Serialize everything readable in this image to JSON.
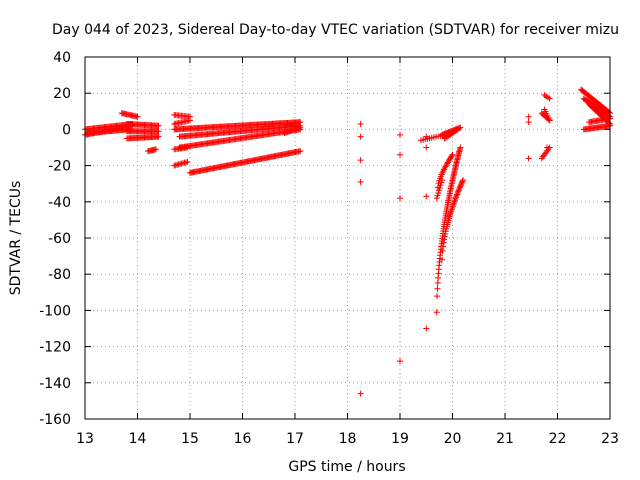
{
  "chart_data": {
    "type": "scatter",
    "title": "Day 044 of 2023, Sidereal Day-to-day VTEC variation (SDTVAR) for receiver mizu",
    "xlabel": "GPS time / hours",
    "ylabel": "SDTVAR / TECUs",
    "xlim": [
      13,
      23
    ],
    "ylim": [
      -160,
      40
    ],
    "xticks": [
      13,
      14,
      15,
      16,
      17,
      18,
      19,
      20,
      21,
      22,
      23
    ],
    "yticks": [
      -160,
      -140,
      -120,
      -100,
      -80,
      -60,
      -40,
      -20,
      0,
      20,
      40
    ],
    "grid": true,
    "marker": "+",
    "color": "#ff0000",
    "segments": [
      {
        "x0": 13.0,
        "y0": -3,
        "x1": 13.9,
        "y1": 2,
        "n": 40
      },
      {
        "x0": 13.0,
        "y0": 0,
        "x1": 13.9,
        "y1": 3,
        "n": 40
      },
      {
        "x0": 13.05,
        "y0": -2,
        "x1": 13.85,
        "y1": 0,
        "n": 36
      },
      {
        "x0": 13.7,
        "y0": 9,
        "x1": 14.0,
        "y1": 7,
        "n": 14
      },
      {
        "x0": 13.8,
        "y0": -5,
        "x1": 14.4,
        "y1": -4,
        "n": 28
      },
      {
        "x0": 13.8,
        "y0": 3,
        "x1": 14.4,
        "y1": 2,
        "n": 28
      },
      {
        "x0": 13.8,
        "y0": -1,
        "x1": 14.4,
        "y1": -1,
        "n": 28
      },
      {
        "x0": 14.2,
        "y0": -12,
        "x1": 14.35,
        "y1": -11,
        "n": 8
      },
      {
        "x0": 14.7,
        "y0": 8,
        "x1": 15.0,
        "y1": 7,
        "n": 12
      },
      {
        "x0": 14.7,
        "y0": 3,
        "x1": 15.0,
        "y1": 5,
        "n": 12
      },
      {
        "x0": 14.7,
        "y0": -20,
        "x1": 14.95,
        "y1": -18,
        "n": 10
      },
      {
        "x0": 14.7,
        "y0": -11,
        "x1": 14.95,
        "y1": -10,
        "n": 10
      },
      {
        "x0": 14.7,
        "y0": 0,
        "x1": 17.1,
        "y1": 4,
        "n": 110
      },
      {
        "x0": 14.8,
        "y0": -4,
        "x1": 17.1,
        "y1": 2,
        "n": 100
      },
      {
        "x0": 14.8,
        "y0": -10,
        "x1": 17.1,
        "y1": 0,
        "n": 100
      },
      {
        "x0": 15.0,
        "y0": -24,
        "x1": 17.1,
        "y1": -12,
        "n": 95
      },
      {
        "x0": 16.8,
        "y0": -2,
        "x1": 17.1,
        "y1": 1,
        "n": 14
      },
      {
        "x0": 19.4,
        "y0": -6,
        "x1": 19.85,
        "y1": -3,
        "n": 12
      },
      {
        "x0": 19.8,
        "y0": -3,
        "x1": 20.15,
        "y1": 1,
        "n": 18
      },
      {
        "x0": 19.7,
        "y0": -38,
        "x1": 19.8,
        "y1": -28,
        "n": 8
      },
      {
        "x0": 19.85,
        "y0": -5,
        "x1": 20.1,
        "y1": 0,
        "n": 12
      },
      {
        "x0": 21.7,
        "y0": -16,
        "x1": 21.85,
        "y1": -10,
        "n": 8
      },
      {
        "x0": 21.7,
        "y0": 9,
        "x1": 21.85,
        "y1": 5,
        "n": 8
      },
      {
        "x0": 21.75,
        "y0": 11,
        "x1": 21.85,
        "y1": 5,
        "n": 6
      },
      {
        "x0": 21.75,
        "y0": 19,
        "x1": 21.85,
        "y1": 17,
        "n": 4
      },
      {
        "x0": 22.45,
        "y0": 22,
        "x1": 23.0,
        "y1": 9,
        "n": 30
      },
      {
        "x0": 22.5,
        "y0": 17,
        "x1": 23.0,
        "y1": 7,
        "n": 26
      },
      {
        "x0": 22.6,
        "y0": 14,
        "x1": 23.0,
        "y1": 3,
        "n": 22
      },
      {
        "x0": 22.5,
        "y0": 0,
        "x1": 23.0,
        "y1": 2,
        "n": 24
      },
      {
        "x0": 22.6,
        "y0": 4,
        "x1": 23.0,
        "y1": 6,
        "n": 18
      }
    ],
    "curves": [
      {
        "x_start": 19.7,
        "x_end": 20.15,
        "y_start": -101,
        "y_end": -10,
        "power": 0.55,
        "n": 70
      },
      {
        "x_start": 19.8,
        "x_end": 20.2,
        "y_start": -72,
        "y_end": -28,
        "power": 0.6,
        "n": 40
      },
      {
        "x_start": 19.72,
        "x_end": 20.0,
        "y_start": -32,
        "y_end": -14,
        "power": 0.7,
        "n": 20
      }
    ],
    "points": [
      {
        "x": 18.25,
        "y": 3
      },
      {
        "x": 18.25,
        "y": -4
      },
      {
        "x": 18.25,
        "y": -17
      },
      {
        "x": 18.25,
        "y": -29
      },
      {
        "x": 18.25,
        "y": -146
      },
      {
        "x": 19.0,
        "y": -3
      },
      {
        "x": 19.0,
        "y": -14
      },
      {
        "x": 19.0,
        "y": -38
      },
      {
        "x": 19.0,
        "y": -128
      },
      {
        "x": 19.5,
        "y": -4
      },
      {
        "x": 19.5,
        "y": -10
      },
      {
        "x": 19.5,
        "y": -37
      },
      {
        "x": 19.5,
        "y": -110
      },
      {
        "x": 21.45,
        "y": 7
      },
      {
        "x": 21.45,
        "y": 4
      },
      {
        "x": 21.45,
        "y": -16
      },
      {
        "x": 21.8,
        "y": -10
      }
    ]
  }
}
